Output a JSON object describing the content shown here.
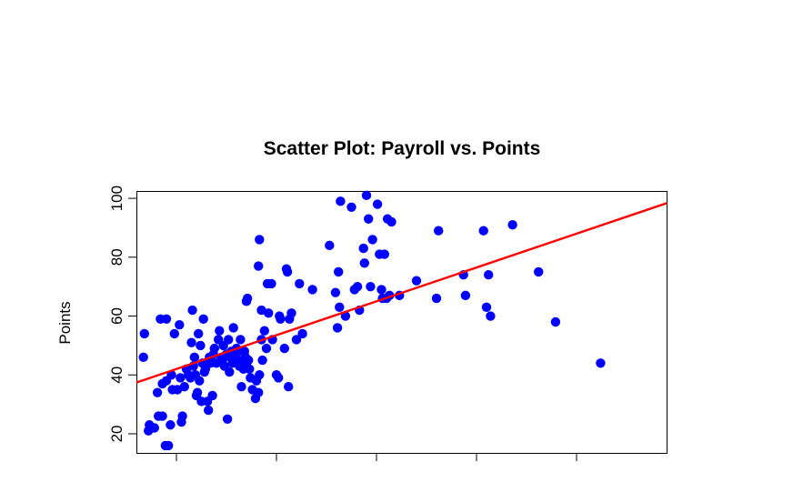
{
  "chart_data": {
    "type": "scatter",
    "title": "Scatter Plot: Payroll vs. Points",
    "xlabel": "",
    "ylabel": "Points",
    "xlim": [
      -4,
      49
    ],
    "ylim": [
      13.5,
      102.5
    ],
    "x_ticks": [
      0,
      10,
      20,
      30,
      40
    ],
    "y_ticks": [
      20,
      40,
      60,
      80,
      100
    ],
    "y_tick_labels": [
      "20",
      "40",
      "60",
      "80",
      "100"
    ],
    "grid": false,
    "legend": "none",
    "point_color": "#0000ff",
    "line_color": "#ff0000",
    "regression_line": {
      "intercept": 42,
      "slope": 1.15
    },
    "points": [
      [
        -3.2,
        54
      ],
      [
        -3.3,
        46
      ],
      [
        -2.7,
        23
      ],
      [
        -2.8,
        21
      ],
      [
        -2.2,
        22
      ],
      [
        -1.8,
        26
      ],
      [
        -1.4,
        26
      ],
      [
        -1.1,
        16
      ],
      [
        -0.8,
        16
      ],
      [
        -1.9,
        34
      ],
      [
        -1.6,
        59
      ],
      [
        -1.0,
        59
      ],
      [
        -1.4,
        37
      ],
      [
        -1.0,
        38
      ],
      [
        -0.6,
        23
      ],
      [
        -0.5,
        40
      ],
      [
        -0.4,
        35
      ],
      [
        -0.2,
        54
      ],
      [
        0.1,
        35
      ],
      [
        0.3,
        57
      ],
      [
        0.5,
        24
      ],
      [
        0.6,
        26
      ],
      [
        0.4,
        39
      ],
      [
        0.8,
        36
      ],
      [
        1.0,
        42
      ],
      [
        1.2,
        40
      ],
      [
        1.4,
        39
      ],
      [
        1.5,
        51
      ],
      [
        1.6,
        62
      ],
      [
        1.7,
        43
      ],
      [
        1.8,
        46
      ],
      [
        1.9,
        40
      ],
      [
        2.0,
        33
      ],
      [
        2.1,
        34
      ],
      [
        2.3,
        38
      ],
      [
        2.2,
        54
      ],
      [
        2.4,
        50
      ],
      [
        2.5,
        31
      ],
      [
        2.6,
        44
      ],
      [
        2.7,
        59
      ],
      [
        2.8,
        41
      ],
      [
        2.9,
        42
      ],
      [
        3.1,
        31
      ],
      [
        3.2,
        28
      ],
      [
        3.3,
        46
      ],
      [
        3.4,
        44
      ],
      [
        3.6,
        33
      ],
      [
        3.7,
        47
      ],
      [
        3.8,
        49
      ],
      [
        4.0,
        44
      ],
      [
        4.2,
        52
      ],
      [
        4.3,
        55
      ],
      [
        4.5,
        46
      ],
      [
        4.7,
        50
      ],
      [
        4.8,
        43
      ],
      [
        4.6,
        45
      ],
      [
        5.0,
        47
      ],
      [
        5.1,
        25
      ],
      [
        5.2,
        52
      ],
      [
        5.3,
        41
      ],
      [
        5.4,
        46
      ],
      [
        5.5,
        48
      ],
      [
        5.6,
        44
      ],
      [
        5.7,
        56
      ],
      [
        5.9,
        47
      ],
      [
        6.0,
        49
      ],
      [
        6.2,
        45
      ],
      [
        6.3,
        43
      ],
      [
        6.4,
        52
      ],
      [
        6.5,
        36
      ],
      [
        6.6,
        48
      ],
      [
        6.7,
        42
      ],
      [
        6.8,
        48
      ],
      [
        6.9,
        46
      ],
      [
        7.0,
        44
      ],
      [
        7.0,
        65
      ],
      [
        7.1,
        66
      ],
      [
        7.2,
        45
      ],
      [
        7.3,
        42
      ],
      [
        7.4,
        39
      ],
      [
        7.6,
        35
      ],
      [
        8.2,
        34
      ],
      [
        8.0,
        38
      ],
      [
        7.9,
        32
      ],
      [
        8.3,
        40
      ],
      [
        8.5,
        52
      ],
      [
        8.5,
        62
      ],
      [
        8.6,
        45
      ],
      [
        8.8,
        55
      ],
      [
        9.0,
        49
      ],
      [
        9.2,
        61
      ],
      [
        9.6,
        52
      ],
      [
        9.1,
        71
      ],
      [
        9.5,
        71
      ],
      [
        8.3,
        86
      ],
      [
        8.2,
        77
      ],
      [
        10.0,
        40
      ],
      [
        10.2,
        39
      ],
      [
        10.3,
        60
      ],
      [
        10.4,
        59
      ],
      [
        10.8,
        49
      ],
      [
        11.0,
        76
      ],
      [
        11.1,
        75
      ],
      [
        11.3,
        59
      ],
      [
        11.5,
        61
      ],
      [
        11.2,
        36
      ],
      [
        12.0,
        52
      ],
      [
        12.3,
        71
      ],
      [
        12.6,
        54
      ],
      [
        13.6,
        69
      ],
      [
        15.3,
        84
      ],
      [
        15.9,
        68
      ],
      [
        16.1,
        56
      ],
      [
        16.3,
        63
      ],
      [
        16.2,
        75
      ],
      [
        16.4,
        99
      ],
      [
        16.9,
        60
      ],
      [
        17.5,
        97
      ],
      [
        17.8,
        69
      ],
      [
        18.1,
        70
      ],
      [
        18.3,
        62
      ],
      [
        18.8,
        78
      ],
      [
        18.7,
        83
      ],
      [
        19.0,
        101
      ],
      [
        19.2,
        93
      ],
      [
        19.4,
        70
      ],
      [
        19.6,
        86
      ],
      [
        20.1,
        98
      ],
      [
        20.3,
        81
      ],
      [
        20.5,
        69
      ],
      [
        20.8,
        81
      ],
      [
        21.0,
        66
      ],
      [
        21.3,
        67
      ],
      [
        20.6,
        66
      ],
      [
        21.1,
        93
      ],
      [
        21.5,
        92
      ],
      [
        22.3,
        67
      ],
      [
        24.0,
        72
      ],
      [
        26.0,
        66
      ],
      [
        26.2,
        89
      ],
      [
        28.7,
        74
      ],
      [
        28.9,
        67
      ],
      [
        30.7,
        89
      ],
      [
        31.2,
        74
      ],
      [
        31.0,
        63
      ],
      [
        31.4,
        60
      ],
      [
        33.6,
        91
      ],
      [
        36.2,
        75
      ],
      [
        37.9,
        58
      ],
      [
        42.4,
        44
      ]
    ]
  }
}
